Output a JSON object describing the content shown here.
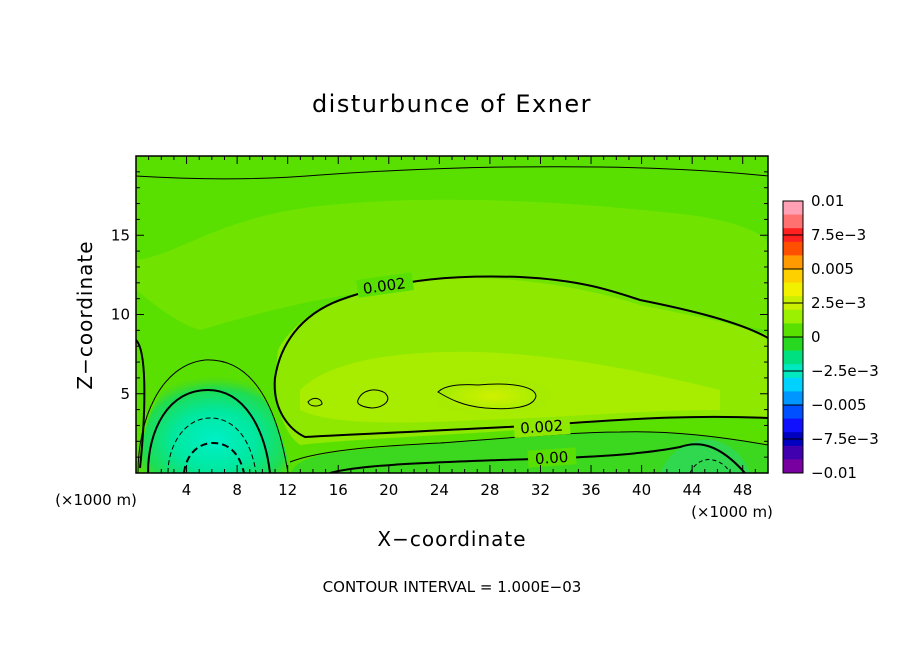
{
  "chart_data": {
    "type": "heatmap",
    "title": "disturbunce of Exner",
    "xlabel": "X−coordinate",
    "ylabel": "Z−coordinate",
    "x_units": "(×1000 m)",
    "y_units": "(×1000 m)",
    "footer": "CONTOUR INTERVAL = 1.000E−03",
    "xlim": [
      0,
      50
    ],
    "ylim": [
      0,
      20
    ],
    "x_ticks": [
      4,
      8,
      12,
      16,
      20,
      24,
      28,
      32,
      36,
      40,
      44,
      48
    ],
    "y_ticks": [
      5,
      10,
      15
    ],
    "colorbar": {
      "range": [
        -0.01,
        0.01
      ],
      "tick_labels": [
        "0.01",
        "7.5e−3",
        "0.005",
        "2.5e−3",
        "0",
        "−2.5e−3",
        "−0.005",
        "−7.5e−3",
        "−0.01"
      ],
      "colors": [
        "#ffa0b4",
        "#ff7070",
        "#ff2020",
        "#ff5000",
        "#ff9a00",
        "#ffd000",
        "#f2f200",
        "#c8f000",
        "#9af000",
        "#5ae000",
        "#28d820",
        "#00e080",
        "#00e8c0",
        "#00d2ff",
        "#0096ff",
        "#0050ff",
        "#1010ff",
        "#0000c0",
        "#4000b0",
        "#7800a0"
      ]
    },
    "contour_labels": [
      "0.002",
      "0.002",
      "0.00"
    ],
    "features": [
      {
        "name": "negative low center",
        "x": 6,
        "z": 0.5,
        "value": -0.003
      },
      {
        "name": "positive maximum",
        "x": 29,
        "z": 5,
        "value": 0.003
      }
    ]
  }
}
